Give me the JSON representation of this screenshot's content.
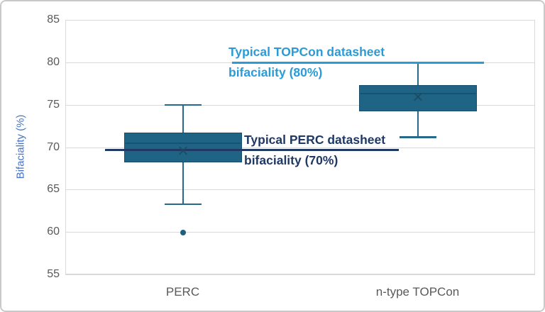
{
  "chart_data": {
    "type": "boxplot",
    "title": "",
    "ylabel": "Bifaciality (%)",
    "xlabel": "",
    "ylim": [
      55,
      85
    ],
    "yticks": [
      85,
      80,
      75,
      70,
      65,
      60,
      55
    ],
    "grid": true,
    "legend": "none",
    "categories": [
      "PERC",
      "n-type TOPCon"
    ],
    "series": [
      {
        "name": "PERC",
        "whisker_low": 63.3,
        "q1": 68.2,
        "median": 70.5,
        "q3": 71.7,
        "whisker_high": 75.0,
        "mean": 69.6,
        "outliers": [
          59.9
        ]
      },
      {
        "name": "n-type TOPCon",
        "whisker_low": 71.2,
        "q1": 74.2,
        "median": 76.3,
        "q3": 77.3,
        "whisker_high": 80.0,
        "mean": 75.9,
        "outliers": []
      }
    ],
    "annotations": [
      {
        "lines": [
          "Typical TOPCon datasheet",
          "bifaciality (80%)"
        ],
        "line_y": 80,
        "color": "#2b9bd7"
      },
      {
        "lines": [
          "Typical PERC datasheet",
          "bifaciality (70%)"
        ],
        "line_y": 69.7,
        "color": "#1f3864"
      }
    ],
    "colors": {
      "box_fill": "#1f6485",
      "box_border": "#194f6b",
      "whisker": "#26698b",
      "median": "#175370",
      "mean_marker": "#1c4a63",
      "outlier": "#1d5f7e",
      "gridline": "#d9d9d9",
      "axis_text": "#595959",
      "axis_title": "#4472c4"
    }
  }
}
